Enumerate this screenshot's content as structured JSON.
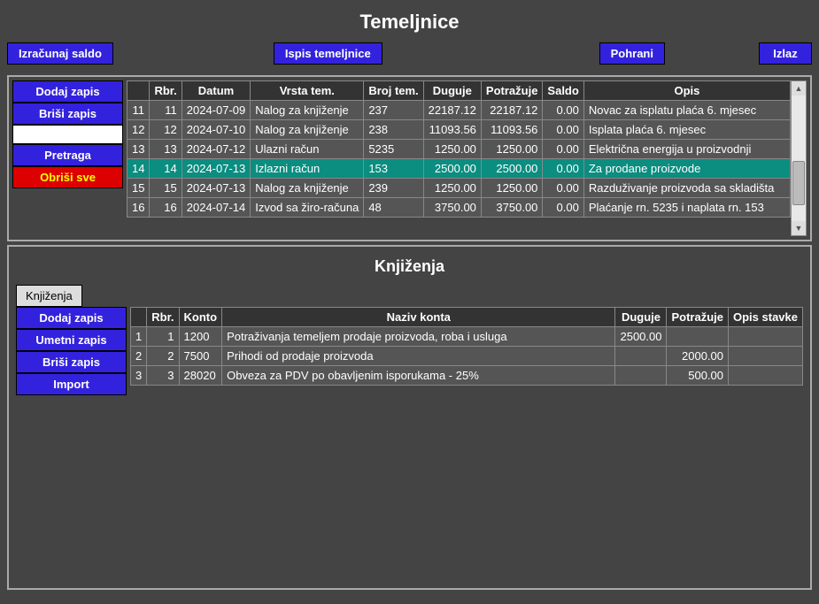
{
  "title": "Temeljnice",
  "toolbar": {
    "calc": "Izračunaj saldo",
    "print": "Ispis temeljnice",
    "save": "Pohrani",
    "exit": "Izlaz"
  },
  "upper": {
    "side": {
      "add": "Dodaj zapis",
      "del": "Briši zapis",
      "search": "Pretraga",
      "delall": "Obriši sve"
    },
    "headers": {
      "rbr": "Rbr.",
      "datum": "Datum",
      "vrsta": "Vrsta tem.",
      "broj": "Broj tem.",
      "duguje": "Duguje",
      "potrazuje": "Potražuje",
      "saldo": "Saldo",
      "opis": "Opis"
    },
    "rows": [
      {
        "handle": "11",
        "rbr": "11",
        "datum": "2024-07-09",
        "vrsta": "Nalog za knjiženje",
        "broj": "237",
        "duguje": "22187.12",
        "potrazuje": "22187.12",
        "saldo": "0.00",
        "opis": "Novac za isplatu plaća 6. mjesec",
        "selected": false
      },
      {
        "handle": "12",
        "rbr": "12",
        "datum": "2024-07-10",
        "vrsta": "Nalog za knjiženje",
        "broj": "238",
        "duguje": "11093.56",
        "potrazuje": "11093.56",
        "saldo": "0.00",
        "opis": "Isplata plaća 6. mjesec",
        "selected": false
      },
      {
        "handle": "13",
        "rbr": "13",
        "datum": "2024-07-12",
        "vrsta": "Ulazni račun",
        "broj": "5235",
        "duguje": "1250.00",
        "potrazuje": "1250.00",
        "saldo": "0.00",
        "opis": "Električna energija u proizvodnji",
        "selected": false
      },
      {
        "handle": "14",
        "rbr": "14",
        "datum": "2024-07-13",
        "vrsta": "Izlazni račun",
        "broj": "153",
        "duguje": "2500.00",
        "potrazuje": "2500.00",
        "saldo": "0.00",
        "opis": "Za prodane proizvode",
        "selected": true
      },
      {
        "handle": "15",
        "rbr": "15",
        "datum": "2024-07-13",
        "vrsta": "Nalog za knjiženje",
        "broj": "239",
        "duguje": "1250.00",
        "potrazuje": "1250.00",
        "saldo": "0.00",
        "opis": "Razduživanje proizvoda sa skladišta",
        "selected": false
      },
      {
        "handle": "16",
        "rbr": "16",
        "datum": "2024-07-14",
        "vrsta": "Izvod sa žiro-računa",
        "broj": "48",
        "duguje": "3750.00",
        "potrazuje": "3750.00",
        "saldo": "0.00",
        "opis": "Plaćanje rn. 5235 i naplata rn. 153",
        "selected": false
      }
    ]
  },
  "lower": {
    "title": "Knjiženja",
    "tab": "Knjiženja",
    "side": {
      "add": "Dodaj zapis",
      "insert": "Umetni zapis",
      "del": "Briši zapis",
      "import": "Import"
    },
    "headers": {
      "rbr": "Rbr.",
      "konto": "Konto",
      "naziv": "Naziv konta",
      "duguje": "Duguje",
      "potrazuje": "Potražuje",
      "opis": "Opis stavke"
    },
    "rows": [
      {
        "handle": "1",
        "rbr": "1",
        "konto": "1200",
        "naziv": "Potraživanja temeljem prodaje proizvoda, roba i usluga",
        "duguje": "2500.00",
        "potrazuje": "",
        "opis": ""
      },
      {
        "handle": "2",
        "rbr": "2",
        "konto": "7500",
        "naziv": "Prihodi od prodaje proizvoda",
        "duguje": "",
        "potrazuje": "2000.00",
        "opis": ""
      },
      {
        "handle": "3",
        "rbr": "3",
        "konto": "28020",
        "naziv": "Obveza za PDV po obavljenim isporukama - 25%",
        "duguje": "",
        "potrazuje": "500.00",
        "opis": ""
      }
    ]
  },
  "colors": {
    "bg": "#444444",
    "panel_border": "#aaaaaa",
    "btn_bg": "#3322dd",
    "btn_red_bg": "#dd0000",
    "btn_red_fg": "#ffff00",
    "th_bg": "#333333",
    "td_bg": "#555555",
    "selected_bg": "#0b8d80",
    "cell_border": "#888888",
    "tab_bg": "#dddddd"
  }
}
